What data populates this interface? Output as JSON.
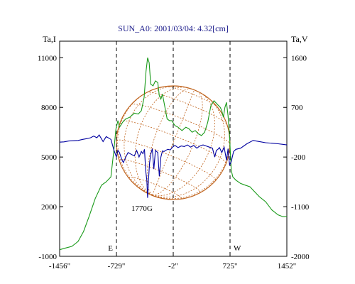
{
  "chart_data": {
    "type": "line",
    "title": "SUN_A0: 2001/03/04: 4.32[cm]",
    "x_axis": {
      "range": [
        -1456,
        1452
      ],
      "ticks": [
        -1456,
        -729,
        -2,
        725,
        1452
      ],
      "tick_labels": [
        "-1456\"",
        "-729\"",
        "-2\"",
        "725\"",
        "1452\""
      ]
    },
    "left_axis": {
      "label": "Ta,I",
      "range": [
        -1000,
        12000
      ],
      "ticks": [
        -1000,
        2000,
        5000,
        8000,
        11000
      ],
      "tick_labels": [
        "-1000",
        "2000",
        "5000",
        "8000",
        "11000"
      ]
    },
    "right_axis": {
      "label": "Ta,V",
      "range": [
        -2000,
        1900
      ],
      "ticks": [
        -2000,
        -1100,
        -200,
        700,
        1600
      ],
      "tick_labels": [
        "-2000",
        "-1100",
        "-200",
        "700",
        "1600"
      ]
    },
    "limb_markers": [
      {
        "x": -729,
        "label": "E"
      },
      {
        "x": -2,
        "label": ""
      },
      {
        "x": 725,
        "label": "W"
      }
    ],
    "annotation": {
      "text": "1770G",
      "x": -330,
      "y_v": -960
    },
    "solar_disk": {
      "center_x": -2,
      "radius": 727,
      "color": "#c0641e"
    },
    "series": [
      {
        "axis": "left",
        "color": "#1a9a1a",
        "x": [
          -1456,
          -1380,
          -1300,
          -1220,
          -1150,
          -1080,
          -1000,
          -920,
          -860,
          -800,
          -760,
          -735,
          -710,
          -690,
          -650,
          -610,
          -560,
          -500,
          -450,
          -410,
          -375,
          -350,
          -330,
          -310,
          -290,
          -260,
          -230,
          -200,
          -180,
          -160,
          -140,
          -120,
          -100,
          -80,
          -50,
          -20,
          20,
          60,
          110,
          160,
          200,
          240,
          280,
          320,
          360,
          400,
          440,
          480,
          520,
          560,
          600,
          620,
          640,
          660,
          680,
          700,
          720,
          740,
          760,
          800,
          860,
          920,
          980,
          1040,
          1100,
          1180,
          1260,
          1340,
          1400,
          1452
        ],
        "y": [
          -600,
          -500,
          -400,
          -100,
          500,
          1400,
          2500,
          3300,
          3500,
          3800,
          5500,
          6700,
          7200,
          6800,
          7100,
          7300,
          7400,
          7650,
          7600,
          7800,
          8600,
          10200,
          11000,
          10700,
          9400,
          9300,
          9600,
          9500,
          8700,
          8500,
          8800,
          8300,
          7800,
          7300,
          7200,
          7200,
          6900,
          6800,
          6600,
          6800,
          6700,
          6500,
          6600,
          6400,
          6300,
          6500,
          7100,
          8100,
          8400,
          8200,
          8000,
          7800,
          7400,
          8000,
          8300,
          7500,
          6200,
          4200,
          3800,
          3600,
          3400,
          3300,
          3200,
          2900,
          2600,
          2300,
          1800,
          1500,
          1400,
          1400
        ]
      },
      {
        "axis": "right",
        "color": "#0000a0",
        "x": [
          -1456,
          -1400,
          -1340,
          -1280,
          -1220,
          -1160,
          -1100,
          -1060,
          -1020,
          -980,
          -950,
          -900,
          -860,
          -800,
          -760,
          -730,
          -710,
          -690,
          -660,
          -640,
          -610,
          -580,
          -540,
          -500,
          -470,
          -440,
          -410,
          -390,
          -370,
          -355,
          -340,
          -330,
          -320,
          -305,
          -290,
          -270,
          -250,
          -230,
          -215,
          -200,
          -180,
          -160,
          -140,
          -120,
          -100,
          -70,
          -40,
          -10,
          20,
          60,
          100,
          140,
          180,
          220,
          260,
          300,
          340,
          380,
          420,
          460,
          500,
          530,
          550,
          570,
          590,
          620,
          650,
          680,
          700,
          720,
          740,
          770,
          800,
          860,
          940,
          1020,
          1100,
          1180,
          1260,
          1340,
          1400,
          1452
        ],
        "y": [
          70,
          75,
          90,
          95,
          100,
          120,
          135,
          150,
          180,
          150,
          200,
          80,
          170,
          120,
          -80,
          -200,
          -80,
          -120,
          -250,
          -300,
          -200,
          -120,
          -150,
          -180,
          -80,
          -200,
          -100,
          -140,
          -60,
          -450,
          -620,
          -940,
          -650,
          -300,
          -150,
          -50,
          -420,
          -80,
          -100,
          -120,
          -550,
          -200,
          -90,
          -100,
          -80,
          -60,
          -70,
          -20,
          10,
          -30,
          0,
          -10,
          20,
          -20,
          10,
          -40,
          0,
          20,
          0,
          -20,
          -40,
          -200,
          -80,
          -60,
          -30,
          -120,
          -20,
          -260,
          -50,
          -350,
          -280,
          -100,
          -60,
          -40,
          40,
          100,
          80,
          60,
          50,
          40,
          30,
          20
        ]
      }
    ],
    "grid": false,
    "legend": "none"
  }
}
